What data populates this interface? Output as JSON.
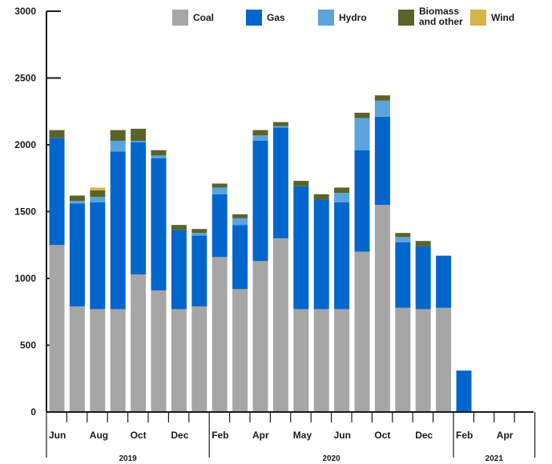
{
  "chart_data": {
    "type": "bar",
    "stacked": true,
    "title": "",
    "xlabel": "",
    "ylabel": "",
    "ylim": [
      0,
      3000
    ],
    "y_ticks": [
      0,
      500,
      1000,
      1500,
      2000,
      2500,
      3000
    ],
    "grid": false,
    "legend_position": "top",
    "months_count": 24,
    "x_tick_labels": [
      {
        "index": 0,
        "label": "Jun"
      },
      {
        "index": 2,
        "label": "Aug"
      },
      {
        "index": 4,
        "label": "Oct"
      },
      {
        "index": 6,
        "label": "Dec"
      },
      {
        "index": 8,
        "label": "Feb"
      },
      {
        "index": 10,
        "label": "Apr"
      },
      {
        "index": 12,
        "label": "May"
      },
      {
        "index": 14,
        "label": "Jun"
      },
      {
        "index": 16,
        "label": "Oct"
      },
      {
        "index": 18,
        "label": "Dec"
      },
      {
        "index": 20,
        "label": "Feb"
      },
      {
        "index": 22,
        "label": "Apr"
      }
    ],
    "years": [
      {
        "label": "2019",
        "start": 0,
        "end": 8
      },
      {
        "label": "2020",
        "start": 8,
        "end": 20
      },
      {
        "label": "2021",
        "start": 20,
        "end": 24
      }
    ],
    "series": [
      {
        "name": "Coal",
        "color": "#a6a6a6",
        "values": [
          1250,
          790,
          770,
          770,
          1030,
          910,
          770,
          790,
          1160,
          920,
          1130,
          1300,
          770,
          770,
          770,
          1200,
          1550,
          780,
          770,
          780,
          0,
          0,
          0,
          0
        ]
      },
      {
        "name": "Gas",
        "color": "#0066cc",
        "values": [
          800,
          770,
          800,
          1180,
          990,
          990,
          590,
          530,
          470,
          480,
          900,
          830,
          920,
          820,
          800,
          760,
          660,
          490,
          470,
          390,
          310,
          0,
          0,
          0
        ]
      },
      {
        "name": "Hydro",
        "color": "#5ba3dd",
        "values": [
          0,
          20,
          40,
          80,
          10,
          20,
          0,
          20,
          50,
          50,
          40,
          10,
          0,
          0,
          70,
          240,
          120,
          40,
          0,
          0,
          0,
          0,
          0,
          0
        ]
      },
      {
        "name": "Biomass and other",
        "color": "#5a6329",
        "values": [
          60,
          40,
          50,
          80,
          90,
          40,
          40,
          30,
          30,
          30,
          40,
          30,
          40,
          40,
          40,
          40,
          40,
          30,
          40,
          0,
          0,
          0,
          0,
          0
        ]
      },
      {
        "name": "Wind",
        "color": "#d6b449",
        "values": [
          0,
          0,
          20,
          0,
          0,
          0,
          0,
          0,
          0,
          0,
          0,
          0,
          0,
          0,
          0,
          0,
          0,
          0,
          0,
          0,
          0,
          0,
          0,
          0
        ]
      }
    ],
    "legend": [
      {
        "label_lines": [
          "Coal"
        ],
        "series_index": 0
      },
      {
        "label_lines": [
          "Gas"
        ],
        "series_index": 1
      },
      {
        "label_lines": [
          "Hydro"
        ],
        "series_index": 2
      },
      {
        "label_lines": [
          "Biomass",
          "and other"
        ],
        "series_index": 3
      },
      {
        "label_lines": [
          "Wind"
        ],
        "series_index": 4
      }
    ]
  }
}
